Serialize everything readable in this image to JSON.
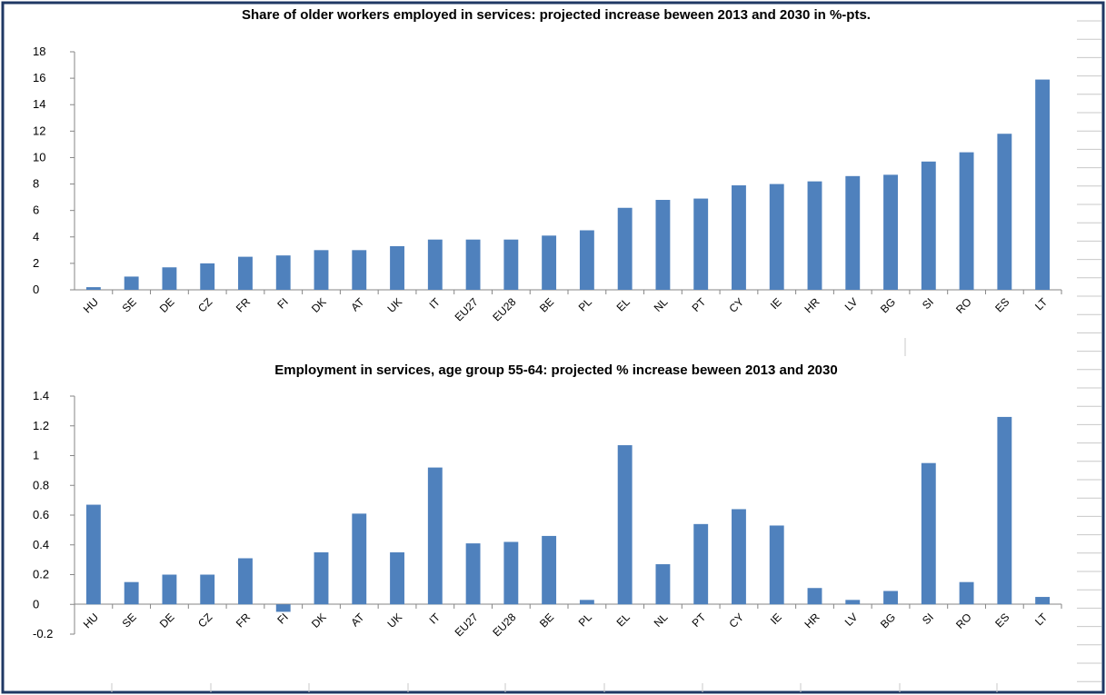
{
  "chart_data": [
    {
      "type": "bar",
      "title": "Share of older workers employed in services: projected increase beween 2013 and 2030 in %-pts.",
      "categories": [
        "HU",
        "SE",
        "DE",
        "CZ",
        "FR",
        "FI",
        "DK",
        "AT",
        "UK",
        "IT",
        "EU27",
        "EU28",
        "BE",
        "PL",
        "EL",
        "NL",
        "PT",
        "CY",
        "IE",
        "HR",
        "LV",
        "BG",
        "SI",
        "RO",
        "ES",
        "LT"
      ],
      "values": [
        0.2,
        1.0,
        1.7,
        2.0,
        2.5,
        2.6,
        3.0,
        3.0,
        3.3,
        3.8,
        3.8,
        3.8,
        4.1,
        4.5,
        6.2,
        6.8,
        6.9,
        7.9,
        8.0,
        8.2,
        8.6,
        8.7,
        9.7,
        10.4,
        11.8,
        15.9
      ],
      "ylim": [
        0,
        18
      ],
      "yticks": [
        0,
        2,
        4,
        6,
        8,
        10,
        12,
        14,
        16,
        18
      ],
      "color": "#4f81bd",
      "grid": false,
      "legend": "none"
    },
    {
      "type": "bar",
      "title": "Employment in services, age group 55-64: projected % increase beween 2013 and 2030",
      "categories": [
        "HU",
        "SE",
        "DE",
        "CZ",
        "FR",
        "FI",
        "DK",
        "AT",
        "UK",
        "IT",
        "EU27",
        "EU28",
        "BE",
        "PL",
        "EL",
        "NL",
        "PT",
        "CY",
        "IE",
        "HR",
        "LV",
        "BG",
        "SI",
        "RO",
        "ES",
        "LT"
      ],
      "values": [
        0.67,
        0.15,
        0.2,
        0.2,
        0.31,
        -0.05,
        0.35,
        0.61,
        0.35,
        0.92,
        0.41,
        0.42,
        0.46,
        0.03,
        1.07,
        0.27,
        0.54,
        0.64,
        0.53,
        0.11,
        0.03,
        0.09,
        0.95,
        0.15,
        1.26,
        0.05
      ],
      "ylim": [
        -0.2,
        1.4
      ],
      "yticks": [
        -0.2,
        0,
        0.2,
        0.4,
        0.6,
        0.8,
        1,
        1.2,
        1.4
      ],
      "ytick_labels": [
        "-0.2",
        "0",
        "0.2",
        "0.4",
        "0.6",
        "0.8",
        "1",
        "1.2",
        "1.4"
      ],
      "color": "#4f81bd",
      "grid": false,
      "legend": "none"
    }
  ]
}
